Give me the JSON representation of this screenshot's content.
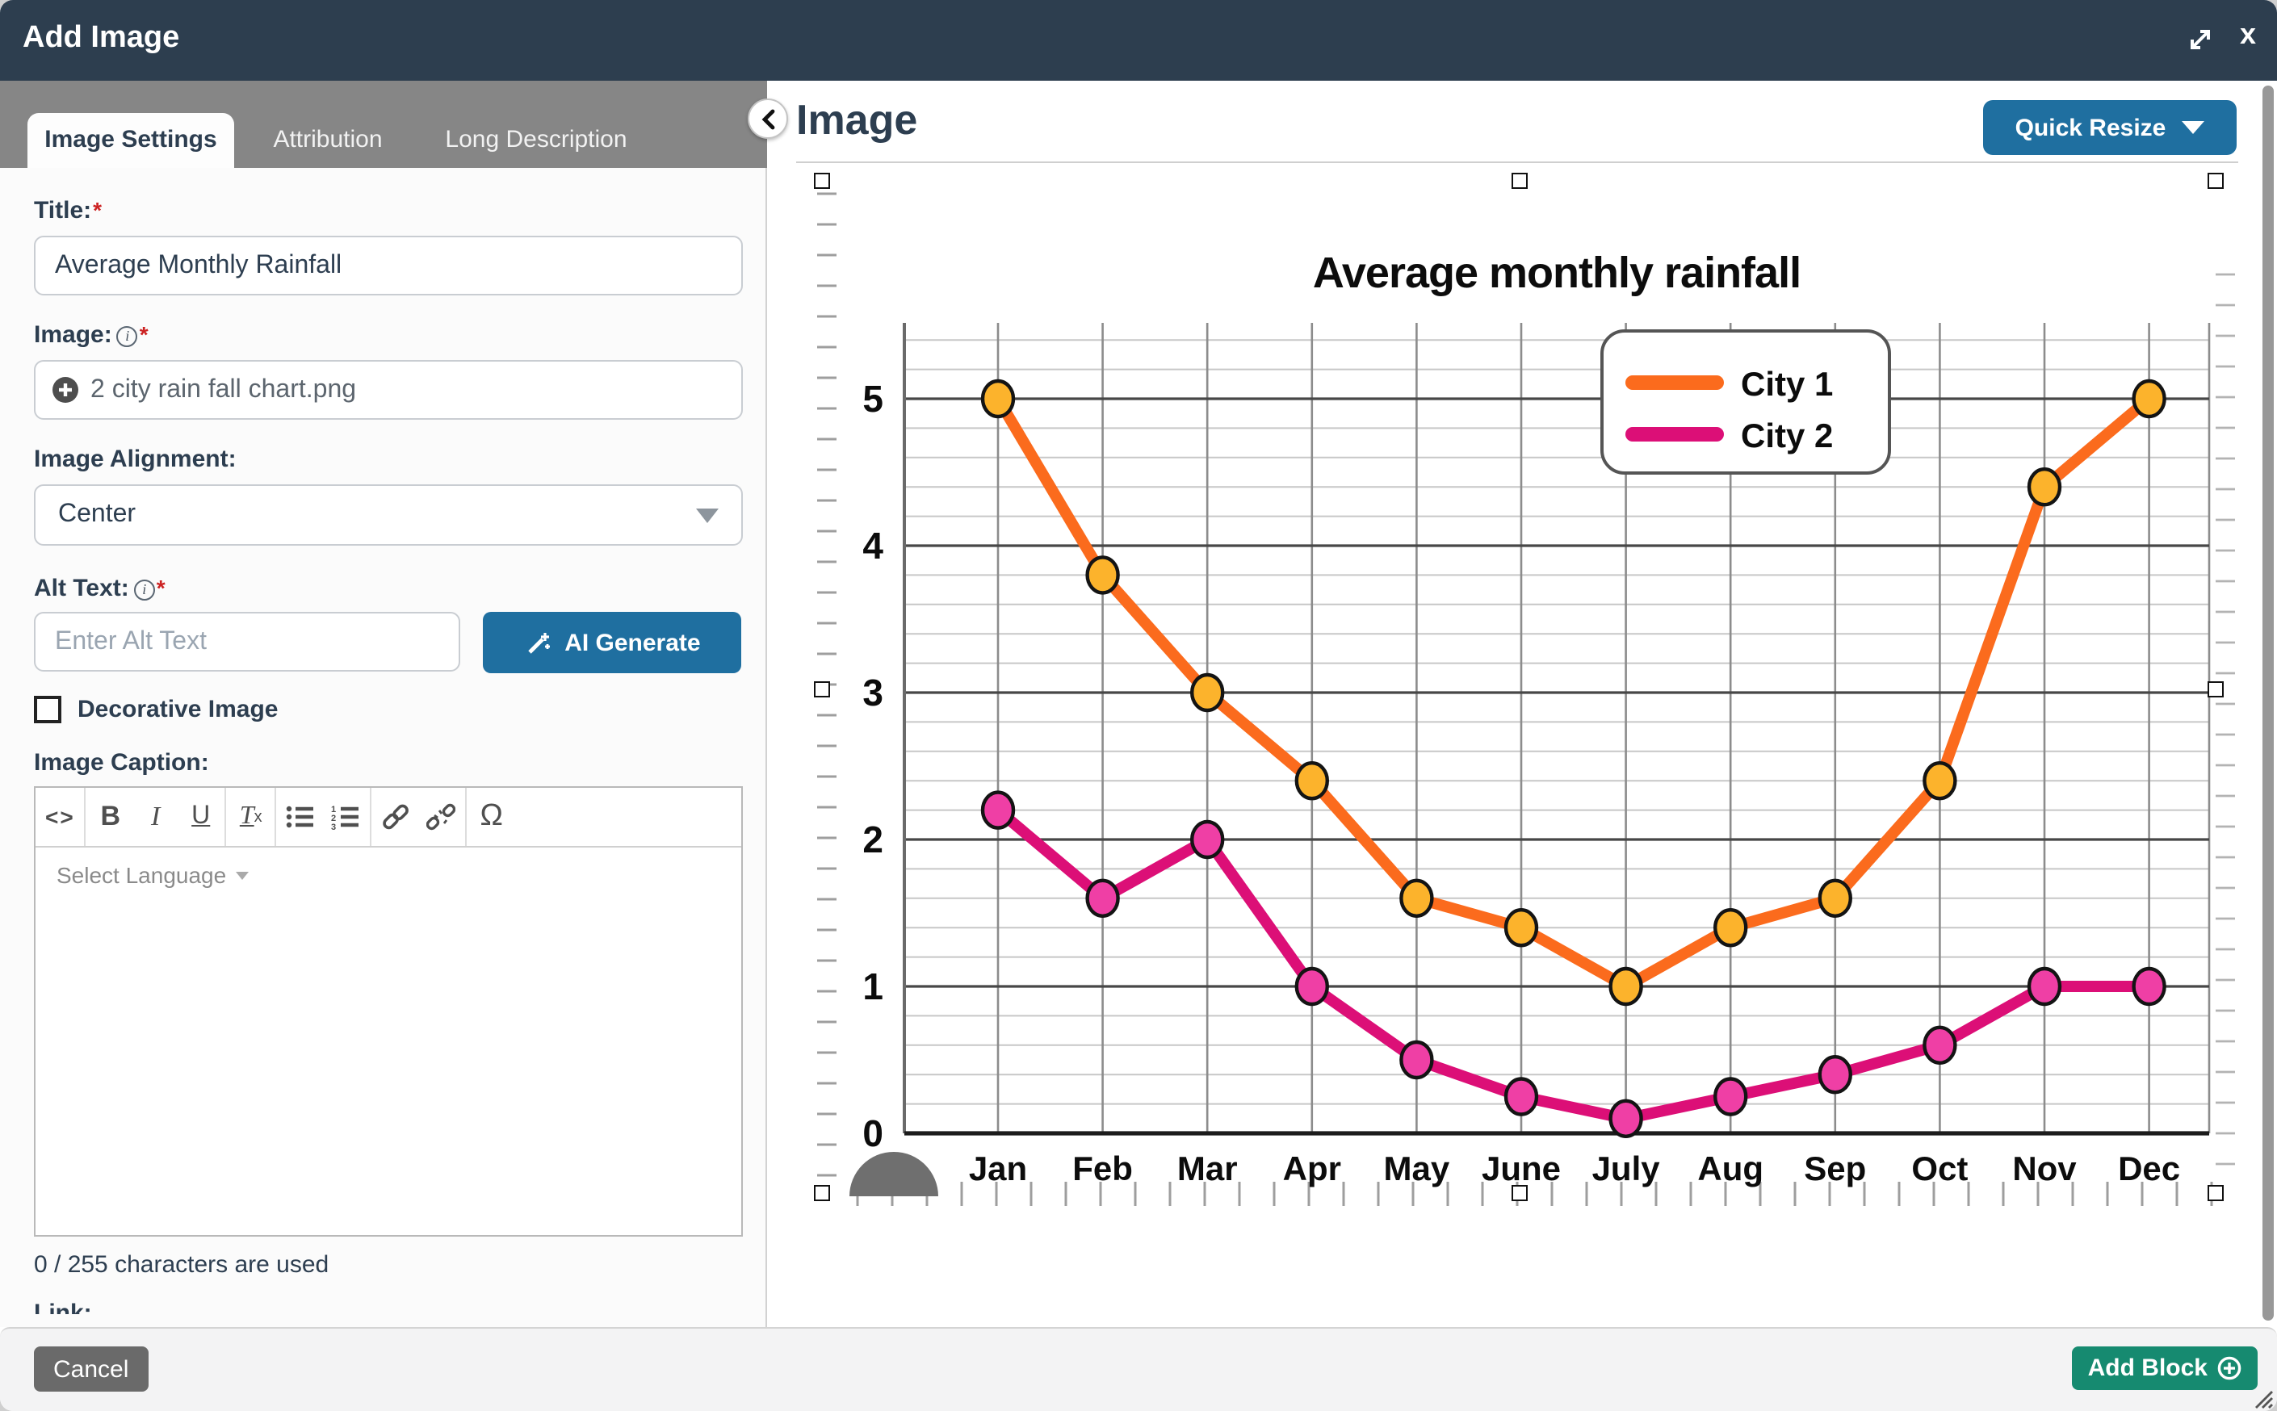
{
  "window": {
    "title": "Add Image",
    "close_glyph": "x"
  },
  "tabs": [
    {
      "label": "Image Settings",
      "active": true
    },
    {
      "label": "Attribution",
      "active": false
    },
    {
      "label": "Long Description",
      "active": false
    }
  ],
  "required_marker": "*",
  "info_glyph": "i",
  "form": {
    "title": {
      "label": "Title:",
      "value": "Average Monthly Rainfall"
    },
    "image": {
      "label": "Image:",
      "filename": "2 city rain fall chart.png"
    },
    "alignment": {
      "label": "Image Alignment:",
      "value": "Center"
    },
    "alt_text": {
      "label": "Alt Text:",
      "placeholder": "Enter Alt Text",
      "ai_button": "AI Generate"
    },
    "decorative": {
      "label": "Decorative Image",
      "checked": false
    },
    "caption": {
      "label": "Image Caption:",
      "language_selector": "Select Language",
      "char_count": "0 / 255 characters are used",
      "toolbar_glyphs": {
        "source": "<>",
        "bold": "B",
        "italic": "I",
        "underline": "U",
        "remove_t": "T",
        "remove_x": "x",
        "omega": "Ω"
      }
    },
    "link": {
      "label": "Link:"
    }
  },
  "preview": {
    "heading": "Image",
    "quick_resize": "Quick Resize"
  },
  "footer": {
    "cancel": "Cancel",
    "add_block": "Add Block"
  },
  "colors": {
    "accent_blue": "#1f6fa0",
    "accent_green": "#168a70",
    "header_navy": "#2d3e4f"
  },
  "chart_data": {
    "type": "line",
    "title": "Average monthly rainfall",
    "categories": [
      "Jan",
      "Feb",
      "Mar",
      "Apr",
      "May",
      "June",
      "July",
      "Aug",
      "Sep",
      "Oct",
      "Nov",
      "Dec"
    ],
    "series": [
      {
        "name": "City 1",
        "color": "#fb6b1d",
        "point_fill": "#fcb32c",
        "values": [
          5,
          3.8,
          3,
          2.4,
          1.6,
          1.4,
          1,
          1.4,
          1.6,
          2.4,
          4.4,
          5
        ]
      },
      {
        "name": "City 2",
        "color": "#dc0f77",
        "point_fill": "#ef3fa5",
        "values": [
          2.2,
          1.6,
          2,
          1,
          0.5,
          0.25,
          0.1,
          0.25,
          0.4,
          0.6,
          1,
          1
        ]
      }
    ],
    "ylim": [
      0,
      5.5
    ],
    "ytick_major": 1,
    "ytick_minor": 0.2,
    "yticks": [
      0,
      1,
      2,
      3,
      4,
      5
    ],
    "grid": true,
    "legend_position": "top-right"
  }
}
